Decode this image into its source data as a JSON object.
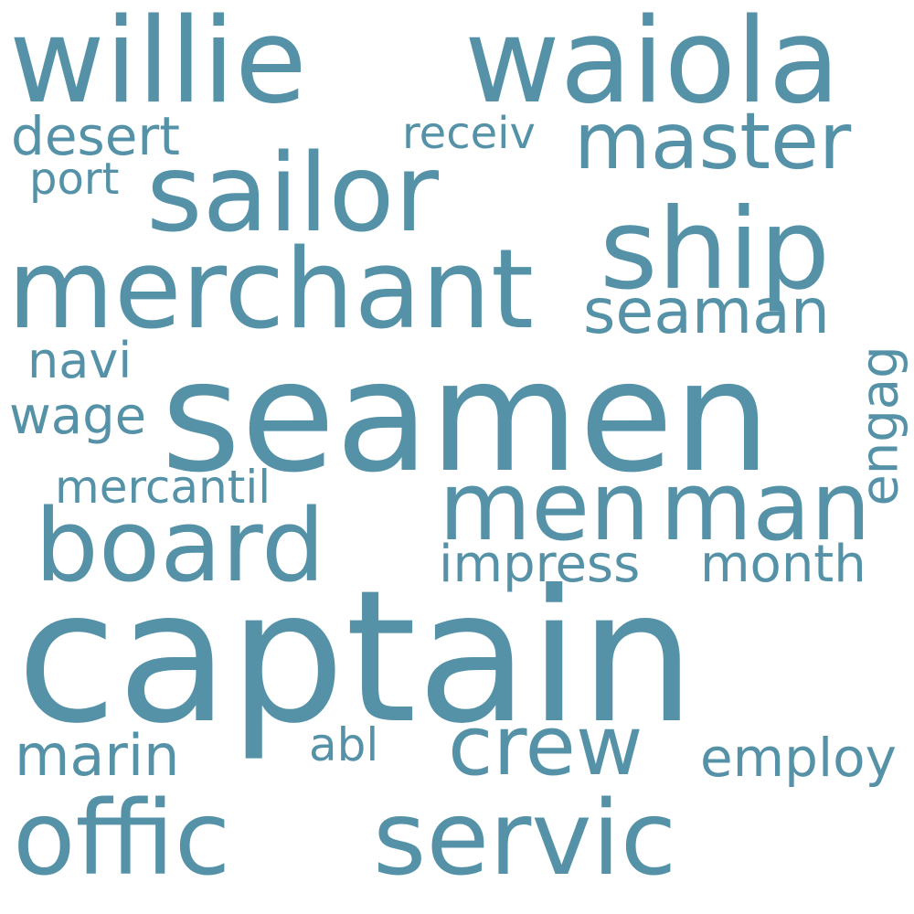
{
  "word_color": "#5592a8",
  "background_color": "#ffffff",
  "words": [
    {
      "text": "willie"
    },
    {
      "text": "waiola"
    },
    {
      "text": "master"
    },
    {
      "text": "desert"
    },
    {
      "text": "receiv"
    },
    {
      "text": "port"
    },
    {
      "text": "sailor"
    },
    {
      "text": "ship"
    },
    {
      "text": "merchant"
    },
    {
      "text": "seaman"
    },
    {
      "text": "engag"
    },
    {
      "text": "navi"
    },
    {
      "text": "seamen"
    },
    {
      "text": "wage"
    },
    {
      "text": "men"
    },
    {
      "text": "man"
    },
    {
      "text": "mercantil"
    },
    {
      "text": "board"
    },
    {
      "text": "impress"
    },
    {
      "text": "month"
    },
    {
      "text": "captain"
    },
    {
      "text": "marin"
    },
    {
      "text": "abl"
    },
    {
      "text": "crew"
    },
    {
      "text": "employ"
    },
    {
      "text": "offic"
    },
    {
      "text": "servic"
    }
  ]
}
